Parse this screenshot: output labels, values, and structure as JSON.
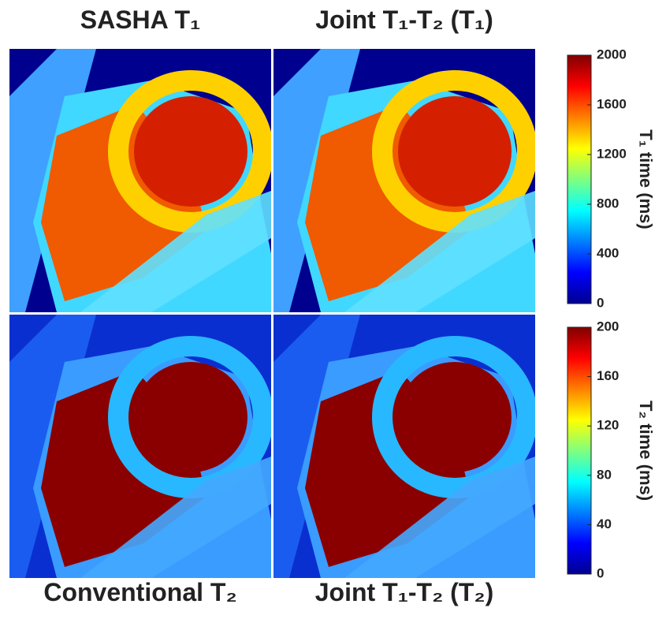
{
  "panels": [
    {
      "title": "SASHA T₁"
    },
    {
      "title": "Joint T₁-T₂ (T₁)"
    },
    {
      "title": "Conventional T₂"
    },
    {
      "title": "Joint T₁-T₂ (T₂)"
    }
  ],
  "colorbars": [
    {
      "label": "T₁ time (ms)",
      "range": [
        0,
        2000
      ],
      "ticks": [
        0,
        400,
        800,
        1200,
        1600,
        2000
      ]
    },
    {
      "label": "T₂ time (ms)",
      "range": [
        0,
        200
      ],
      "ticks": [
        0,
        40,
        80,
        120,
        160,
        200
      ]
    }
  ]
}
